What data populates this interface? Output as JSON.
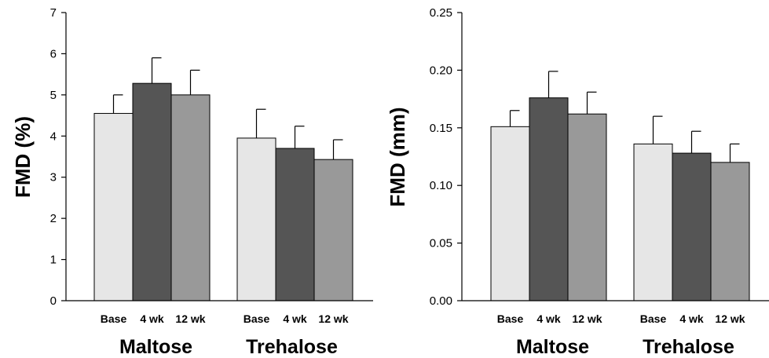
{
  "chart_data": [
    {
      "type": "bar",
      "ylabel": "FMD (%)",
      "ylim": [
        0,
        7
      ],
      "yticks": [
        "0",
        "1",
        "2",
        "3",
        "4",
        "5",
        "6",
        "7"
      ],
      "groups": [
        {
          "name": "Maltose",
          "categories": [
            "Base",
            "4 wk",
            "12 wk"
          ],
          "values": [
            4.55,
            5.28,
            5.0
          ],
          "errors": [
            0.45,
            0.62,
            0.6
          ]
        },
        {
          "name": "Trehalose",
          "categories": [
            "Base",
            "4 wk",
            "12 wk"
          ],
          "values": [
            3.95,
            3.7,
            3.43
          ],
          "errors": [
            0.7,
            0.54,
            0.48
          ]
        }
      ],
      "colors": [
        "#e6e6e6",
        "#555555",
        "#999999"
      ]
    },
    {
      "type": "bar",
      "ylabel": "FMD (mm)",
      "ylim": [
        0,
        0.25
      ],
      "yticks": [
        "0.00",
        "0.05",
        "0.10",
        "0.15",
        "0.20",
        "0.25"
      ],
      "groups": [
        {
          "name": "Maltose",
          "categories": [
            "Base",
            "4 wk",
            "12 wk"
          ],
          "values": [
            0.151,
            0.176,
            0.162
          ],
          "errors": [
            0.014,
            0.023,
            0.019
          ]
        },
        {
          "name": "Trehalose",
          "categories": [
            "Base",
            "4 wk",
            "12 wk"
          ],
          "values": [
            0.136,
            0.128,
            0.12
          ],
          "errors": [
            0.024,
            0.019,
            0.016
          ]
        }
      ],
      "colors": [
        "#e6e6e6",
        "#555555",
        "#999999"
      ]
    }
  ]
}
